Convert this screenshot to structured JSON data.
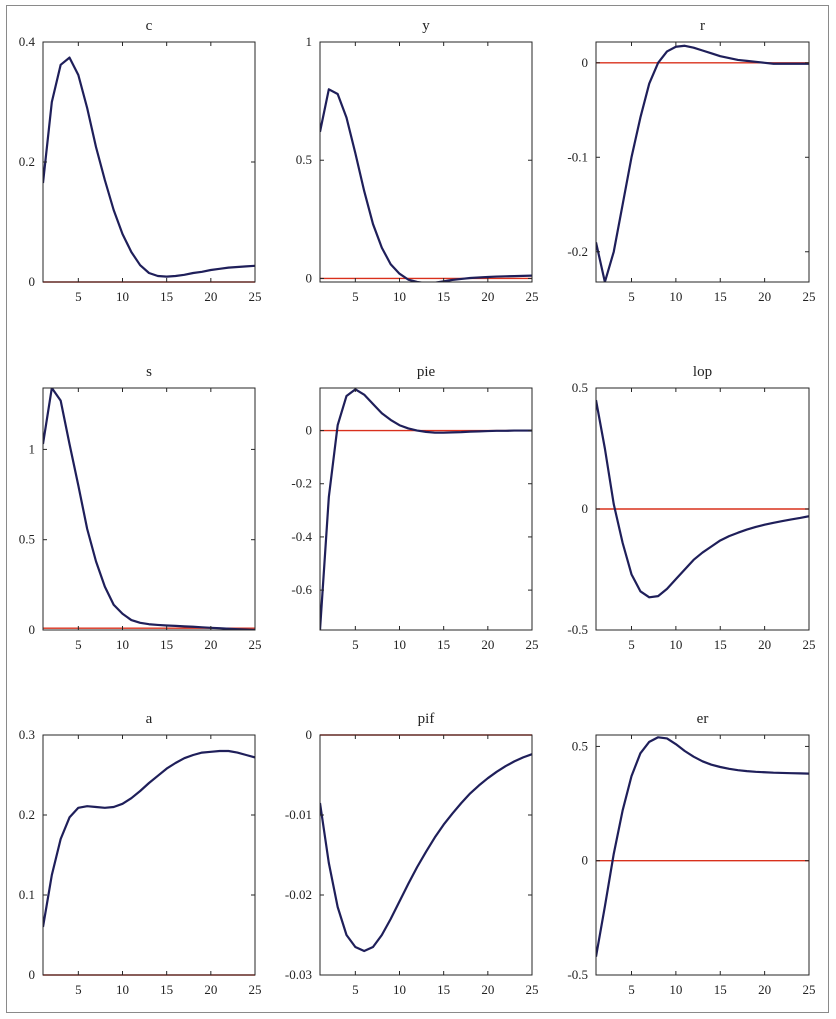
{
  "chart_data": [
    {
      "type": "line",
      "title": "c",
      "x": [
        1,
        2,
        3,
        4,
        5,
        6,
        7,
        8,
        9,
        10,
        11,
        12,
        13,
        14,
        15,
        16,
        17,
        18,
        19,
        20,
        21,
        22,
        23,
        24,
        25
      ],
      "values": [
        0.165,
        0.3,
        0.362,
        0.374,
        0.345,
        0.29,
        0.225,
        0.17,
        0.12,
        0.08,
        0.05,
        0.028,
        0.015,
        0.01,
        0.009,
        0.01,
        0.012,
        0.015,
        0.017,
        0.02,
        0.022,
        0.024,
        0.025,
        0.026,
        0.027
      ],
      "xlim": [
        1,
        25
      ],
      "ylim": [
        0,
        0.4
      ],
      "yticks": [
        0,
        0.2,
        0.4
      ],
      "yticklabels": [
        "0",
        "0.2",
        "0.4"
      ],
      "xticks": [
        5,
        10,
        15,
        20,
        25
      ],
      "xticklabels": [
        "5",
        "10",
        "15",
        "20",
        "25"
      ],
      "zero_line": 0
    },
    {
      "type": "line",
      "title": "y",
      "x": [
        1,
        2,
        3,
        4,
        5,
        6,
        7,
        8,
        9,
        10,
        11,
        12,
        13,
        14,
        15,
        16,
        17,
        18,
        19,
        20,
        21,
        22,
        23,
        24,
        25
      ],
      "values": [
        0.62,
        0.8,
        0.78,
        0.68,
        0.53,
        0.37,
        0.23,
        0.13,
        0.06,
        0.02,
        -0.005,
        -0.015,
        -0.02,
        -0.018,
        -0.012,
        -0.006,
        -0.002,
        0.002,
        0.004,
        0.006,
        0.008,
        0.009,
        0.01,
        0.011,
        0.012
      ],
      "xlim": [
        1,
        25
      ],
      "ylim": [
        -0.015,
        1
      ],
      "yticks": [
        0,
        0.5,
        1
      ],
      "yticklabels": [
        "0",
        "0.5",
        "1"
      ],
      "xticks": [
        5,
        10,
        15,
        20,
        25
      ],
      "xticklabels": [
        "5",
        "10",
        "15",
        "20",
        "25"
      ],
      "zero_line": 0
    },
    {
      "type": "line",
      "title": "r",
      "x": [
        1,
        2,
        3,
        4,
        5,
        6,
        7,
        8,
        9,
        10,
        11,
        12,
        13,
        14,
        15,
        16,
        17,
        18,
        19,
        20,
        21,
        22,
        23,
        24,
        25
      ],
      "values": [
        -0.19,
        -0.232,
        -0.2,
        -0.15,
        -0.1,
        -0.058,
        -0.022,
        0.0,
        0.012,
        0.017,
        0.018,
        0.016,
        0.013,
        0.01,
        0.007,
        0.005,
        0.003,
        0.002,
        0.001,
        0.0,
        -0.001,
        -0.001,
        -0.001,
        -0.001,
        -0.001
      ],
      "xlim": [
        1,
        25
      ],
      "ylim": [
        -0.232,
        0.022
      ],
      "yticks": [
        -0.2,
        -0.1,
        0
      ],
      "yticklabels": [
        "-0.2",
        "-0.1",
        "0"
      ],
      "xticks": [
        5,
        10,
        15,
        20,
        25
      ],
      "xticklabels": [
        "5",
        "10",
        "15",
        "20",
        "25"
      ],
      "zero_line": 0
    },
    {
      "type": "line",
      "title": "s",
      "x": [
        1,
        2,
        3,
        4,
        5,
        6,
        7,
        8,
        9,
        10,
        11,
        12,
        13,
        14,
        15,
        16,
        17,
        18,
        19,
        20,
        21,
        22,
        23,
        24,
        25
      ],
      "values": [
        1.03,
        1.34,
        1.27,
        1.03,
        0.8,
        0.56,
        0.38,
        0.24,
        0.14,
        0.09,
        0.055,
        0.04,
        0.032,
        0.028,
        0.025,
        0.023,
        0.02,
        0.018,
        0.015,
        0.012,
        0.01,
        0.007,
        0.004,
        0.002,
        0.0
      ],
      "xlim": [
        1,
        25
      ],
      "ylim": [
        0,
        1.34
      ],
      "yticks": [
        0,
        0.5,
        1
      ],
      "yticklabels": [
        "0",
        "0.5",
        "1"
      ],
      "xticks": [
        5,
        10,
        15,
        20,
        25
      ],
      "xticklabels": [
        "5",
        "10",
        "15",
        "20",
        "25"
      ],
      "zero_line": 0.01
    },
    {
      "type": "line",
      "title": "pie",
      "x": [
        1,
        2,
        3,
        4,
        5,
        6,
        7,
        8,
        9,
        10,
        11,
        12,
        13,
        14,
        15,
        16,
        17,
        18,
        19,
        20,
        21,
        22,
        23,
        24,
        25
      ],
      "values": [
        -0.75,
        -0.25,
        0.02,
        0.13,
        0.155,
        0.135,
        0.1,
        0.065,
        0.04,
        0.02,
        0.008,
        0.0,
        -0.005,
        -0.008,
        -0.008,
        -0.007,
        -0.006,
        -0.004,
        -0.003,
        -0.002,
        -0.001,
        -0.001,
        0.0,
        0.0,
        0.0
      ],
      "xlim": [
        1,
        25
      ],
      "ylim": [
        -0.75,
        0.16
      ],
      "yticks": [
        -0.6,
        -0.4,
        -0.2,
        0
      ],
      "yticklabels": [
        "-0.6",
        "-0.4",
        "-0.2",
        "0"
      ],
      "xticks": [
        5,
        10,
        15,
        20,
        25
      ],
      "xticklabels": [
        "5",
        "10",
        "15",
        "20",
        "25"
      ],
      "zero_line": 0
    },
    {
      "type": "line",
      "title": "lop",
      "x": [
        1,
        2,
        3,
        4,
        5,
        6,
        7,
        8,
        9,
        10,
        11,
        12,
        13,
        14,
        15,
        16,
        17,
        18,
        19,
        20,
        21,
        22,
        23,
        24,
        25
      ],
      "values": [
        0.45,
        0.25,
        0.02,
        -0.14,
        -0.27,
        -0.34,
        -0.365,
        -0.36,
        -0.33,
        -0.29,
        -0.25,
        -0.21,
        -0.18,
        -0.155,
        -0.13,
        -0.112,
        -0.098,
        -0.085,
        -0.074,
        -0.065,
        -0.057,
        -0.05,
        -0.043,
        -0.037,
        -0.03
      ],
      "xlim": [
        1,
        25
      ],
      "ylim": [
        -0.5,
        0.5
      ],
      "yticks": [
        -0.5,
        0,
        0.5
      ],
      "yticklabels": [
        "-0.5",
        "0",
        "0.5"
      ],
      "xticks": [
        5,
        10,
        15,
        20,
        25
      ],
      "xticklabels": [
        "5",
        "10",
        "15",
        "20",
        "25"
      ],
      "zero_line": 0
    },
    {
      "type": "line",
      "title": "a",
      "x": [
        1,
        2,
        3,
        4,
        5,
        6,
        7,
        8,
        9,
        10,
        11,
        12,
        13,
        14,
        15,
        16,
        17,
        18,
        19,
        20,
        21,
        22,
        23,
        24,
        25
      ],
      "values": [
        0.06,
        0.125,
        0.17,
        0.197,
        0.209,
        0.211,
        0.21,
        0.209,
        0.21,
        0.214,
        0.221,
        0.23,
        0.24,
        0.249,
        0.258,
        0.265,
        0.271,
        0.275,
        0.278,
        0.279,
        0.28,
        0.28,
        0.278,
        0.275,
        0.272
      ],
      "xlim": [
        1,
        25
      ],
      "ylim": [
        0,
        0.3
      ],
      "yticks": [
        0,
        0.1,
        0.2,
        0.3
      ],
      "yticklabels": [
        "0",
        "0.1",
        "0.2",
        "0.3"
      ],
      "xticks": [
        5,
        10,
        15,
        20,
        25
      ],
      "xticklabels": [
        "5",
        "10",
        "15",
        "20",
        "25"
      ],
      "zero_line": 0
    },
    {
      "type": "line",
      "title": "pif",
      "x": [
        1,
        2,
        3,
        4,
        5,
        6,
        7,
        8,
        9,
        10,
        11,
        12,
        13,
        14,
        15,
        16,
        17,
        18,
        19,
        20,
        21,
        22,
        23,
        24,
        25
      ],
      "values": [
        -0.0085,
        -0.016,
        -0.0215,
        -0.025,
        -0.0265,
        -0.027,
        -0.0265,
        -0.025,
        -0.023,
        -0.0208,
        -0.0186,
        -0.0165,
        -0.0146,
        -0.0128,
        -0.0112,
        -0.0098,
        -0.0085,
        -0.0073,
        -0.0063,
        -0.0054,
        -0.0046,
        -0.0039,
        -0.0033,
        -0.0028,
        -0.0024
      ],
      "xlim": [
        1,
        25
      ],
      "ylim": [
        -0.03,
        0
      ],
      "yticks": [
        -0.03,
        -0.02,
        -0.01,
        0
      ],
      "yticklabels": [
        "-0.03",
        "-0.02",
        "-0.01",
        "0"
      ],
      "xticks": [
        5,
        10,
        15,
        20,
        25
      ],
      "xticklabels": [
        "5",
        "10",
        "15",
        "20",
        "25"
      ],
      "zero_line": 0
    },
    {
      "type": "line",
      "title": "er",
      "x": [
        1,
        2,
        3,
        4,
        5,
        6,
        7,
        8,
        9,
        10,
        11,
        12,
        13,
        14,
        15,
        16,
        17,
        18,
        19,
        20,
        21,
        22,
        23,
        24,
        25
      ],
      "values": [
        -0.42,
        -0.2,
        0.03,
        0.22,
        0.37,
        0.47,
        0.52,
        0.54,
        0.535,
        0.51,
        0.48,
        0.455,
        0.435,
        0.42,
        0.41,
        0.402,
        0.396,
        0.392,
        0.389,
        0.387,
        0.385,
        0.384,
        0.383,
        0.382,
        0.381
      ],
      "xlim": [
        1,
        25
      ],
      "ylim": [
        -0.5,
        0.55
      ],
      "yticks": [
        -0.5,
        0,
        0.5
      ],
      "yticklabels": [
        "-0.5",
        "0",
        "0.5"
      ],
      "xticks": [
        5,
        10,
        15,
        20,
        25
      ],
      "xticklabels": [
        "5",
        "10",
        "15",
        "20",
        "25"
      ],
      "zero_line": 0
    }
  ],
  "colors": {
    "series": "#1f1f5a",
    "zero_line": "#d9301c",
    "axes": "#262626"
  }
}
